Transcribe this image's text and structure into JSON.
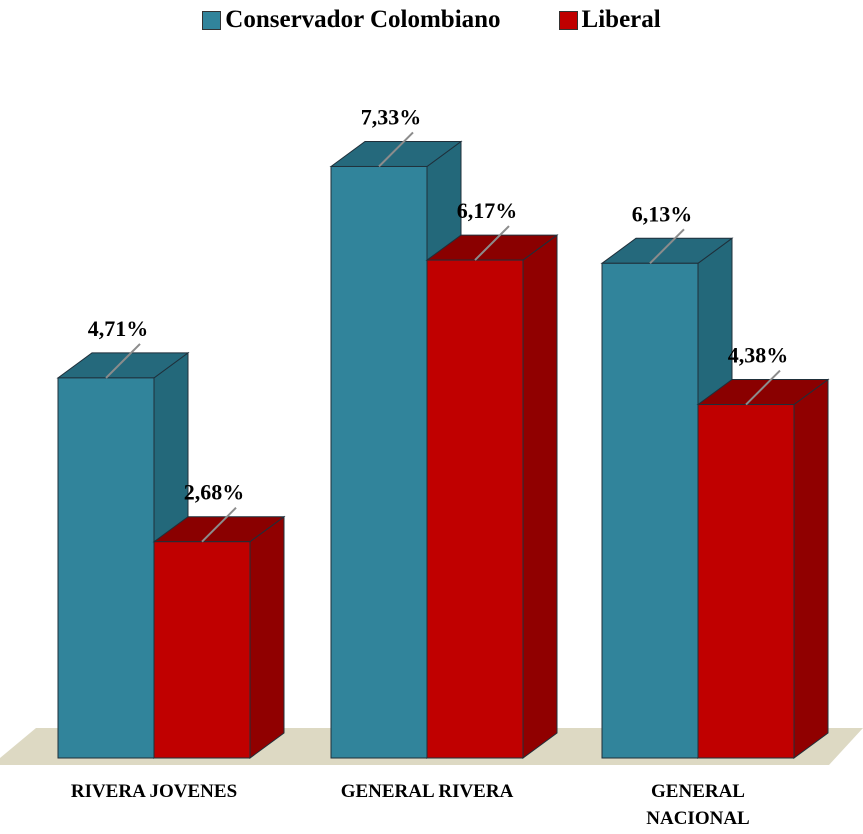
{
  "chart_data": {
    "type": "bar",
    "categories": [
      "RIVERA JOVENES",
      "GENERAL RIVERA",
      "GENERAL NACIONAL"
    ],
    "series": [
      {
        "name": "Conservador Colombiano",
        "values": [
          4.71,
          7.33,
          6.13
        ],
        "labels": [
          "4,71%",
          "7,33%",
          "6,13%"
        ],
        "color": "#31849b",
        "side_color": "#23687a",
        "top_color": "#25697c"
      },
      {
        "name": "Liberal",
        "values": [
          2.68,
          6.17,
          4.38
        ],
        "labels": [
          "2,68%",
          "6,17%",
          "4,38%"
        ],
        "color": "#c00000",
        "side_color": "#900000",
        "top_color": "#8a0000"
      }
    ],
    "legend_position": "top-center",
    "grid": false,
    "style": "3d-columns",
    "ylim": [
      0,
      9.5
    ]
  }
}
